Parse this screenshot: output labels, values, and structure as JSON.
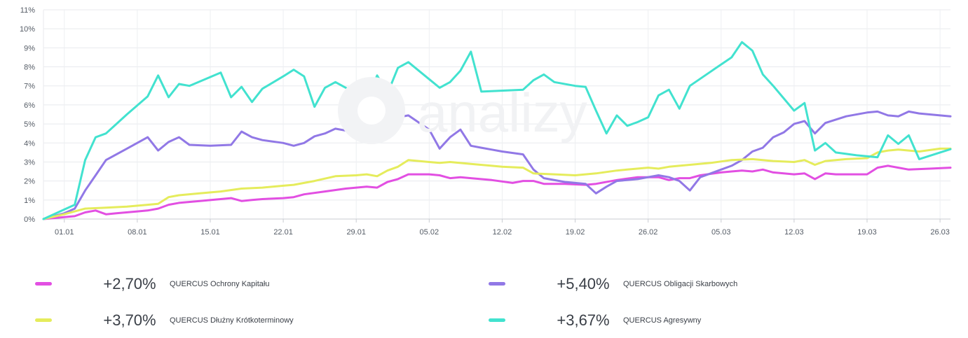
{
  "chart_data": {
    "type": "line",
    "ylim": [
      0,
      11
    ],
    "yticks": [
      "0%",
      "1%",
      "2%",
      "3%",
      "4%",
      "5%",
      "6%",
      "7%",
      "8%",
      "9%",
      "10%",
      "11%"
    ],
    "xlim_days": [
      0,
      87
    ],
    "xticks": [
      {
        "label": "01.01",
        "day": 2
      },
      {
        "label": "08.01",
        "day": 9
      },
      {
        "label": "15.01",
        "day": 16
      },
      {
        "label": "22.01",
        "day": 23
      },
      {
        "label": "29.01",
        "day": 30
      },
      {
        "label": "05.02",
        "day": 37
      },
      {
        "label": "12.02",
        "day": 44
      },
      {
        "label": "19.02",
        "day": 51
      },
      {
        "label": "26.02",
        "day": 58
      },
      {
        "label": "05.03",
        "day": 65
      },
      {
        "label": "12.03",
        "day": 72
      },
      {
        "label": "19.03",
        "day": 79
      },
      {
        "label": "26.03",
        "day": 86
      }
    ],
    "grid": true,
    "series": [
      {
        "name": "QUERCUS Ochrony Kapitału",
        "color": "#e24fe2",
        "points": [
          [
            0,
            0
          ],
          [
            2,
            0.1
          ],
          [
            3,
            0.15
          ],
          [
            4,
            0.35
          ],
          [
            5,
            0.45
          ],
          [
            6,
            0.25
          ],
          [
            7,
            0.3
          ],
          [
            9,
            0.4
          ],
          [
            10,
            0.45
          ],
          [
            11,
            0.55
          ],
          [
            12,
            0.75
          ],
          [
            13,
            0.85
          ],
          [
            15,
            0.95
          ],
          [
            17,
            1.05
          ],
          [
            18,
            1.1
          ],
          [
            19,
            0.95
          ],
          [
            20,
            1.0
          ],
          [
            21,
            1.05
          ],
          [
            23,
            1.1
          ],
          [
            24,
            1.15
          ],
          [
            25,
            1.3
          ],
          [
            27,
            1.45
          ],
          [
            29,
            1.6
          ],
          [
            30,
            1.65
          ],
          [
            31,
            1.7
          ],
          [
            32,
            1.65
          ],
          [
            33,
            1.95
          ],
          [
            34,
            2.1
          ],
          [
            35,
            2.35
          ],
          [
            37,
            2.35
          ],
          [
            38,
            2.3
          ],
          [
            39,
            2.15
          ],
          [
            40,
            2.2
          ],
          [
            41,
            2.15
          ],
          [
            43,
            2.05
          ],
          [
            45,
            1.9
          ],
          [
            46,
            2.0
          ],
          [
            47,
            2.0
          ],
          [
            48,
            1.85
          ],
          [
            50,
            1.85
          ],
          [
            52,
            1.8
          ],
          [
            53,
            1.85
          ],
          [
            55,
            2.05
          ],
          [
            57,
            2.2
          ],
          [
            59,
            2.2
          ],
          [
            60,
            2.05
          ],
          [
            61,
            2.15
          ],
          [
            62,
            2.15
          ],
          [
            63,
            2.3
          ],
          [
            65,
            2.45
          ],
          [
            66,
            2.5
          ],
          [
            67,
            2.55
          ],
          [
            68,
            2.5
          ],
          [
            69,
            2.6
          ],
          [
            70,
            2.45
          ],
          [
            72,
            2.35
          ],
          [
            73,
            2.4
          ],
          [
            74,
            2.1
          ],
          [
            75,
            2.4
          ],
          [
            76,
            2.35
          ],
          [
            79,
            2.35
          ],
          [
            80,
            2.7
          ],
          [
            81,
            2.8
          ],
          [
            82,
            2.7
          ],
          [
            83,
            2.6
          ],
          [
            85,
            2.65
          ],
          [
            87,
            2.7
          ]
        ]
      },
      {
        "name": "QUERCUS Obligacji Skarbowych",
        "color": "#9178e6",
        "points": [
          [
            0,
            0
          ],
          [
            2,
            0.3
          ],
          [
            3,
            0.55
          ],
          [
            4,
            1.5
          ],
          [
            5,
            2.3
          ],
          [
            6,
            3.1
          ],
          [
            8,
            3.7
          ],
          [
            10,
            4.3
          ],
          [
            11,
            3.6
          ],
          [
            12,
            4.05
          ],
          [
            13,
            4.3
          ],
          [
            14,
            3.9
          ],
          [
            16,
            3.85
          ],
          [
            18,
            3.9
          ],
          [
            19,
            4.6
          ],
          [
            20,
            4.3
          ],
          [
            21,
            4.15
          ],
          [
            23,
            4.0
          ],
          [
            24,
            3.85
          ],
          [
            25,
            4.0
          ],
          [
            26,
            4.35
          ],
          [
            27,
            4.5
          ],
          [
            28,
            4.75
          ],
          [
            30,
            4.55
          ],
          [
            31,
            4.4
          ],
          [
            32,
            4.15
          ],
          [
            33,
            4.4
          ],
          [
            34,
            5.35
          ],
          [
            35,
            5.45
          ],
          [
            37,
            4.7
          ],
          [
            38,
            3.7
          ],
          [
            39,
            4.3
          ],
          [
            40,
            4.7
          ],
          [
            41,
            3.85
          ],
          [
            42,
            3.75
          ],
          [
            43,
            3.65
          ],
          [
            44,
            3.55
          ],
          [
            46,
            3.4
          ],
          [
            47,
            2.6
          ],
          [
            48,
            2.15
          ],
          [
            50,
            1.95
          ],
          [
            52,
            1.85
          ],
          [
            53,
            1.35
          ],
          [
            54,
            1.7
          ],
          [
            55,
            2.0
          ],
          [
            57,
            2.1
          ],
          [
            59,
            2.3
          ],
          [
            60,
            2.2
          ],
          [
            61,
            2.0
          ],
          [
            62,
            1.5
          ],
          [
            63,
            2.2
          ],
          [
            64,
            2.4
          ],
          [
            65,
            2.6
          ],
          [
            66,
            2.8
          ],
          [
            67,
            3.1
          ],
          [
            68,
            3.55
          ],
          [
            69,
            3.75
          ],
          [
            70,
            4.3
          ],
          [
            71,
            4.55
          ],
          [
            72,
            5.0
          ],
          [
            73,
            5.15
          ],
          [
            74,
            4.5
          ],
          [
            75,
            5.05
          ],
          [
            77,
            5.4
          ],
          [
            79,
            5.6
          ],
          [
            80,
            5.65
          ],
          [
            81,
            5.45
          ],
          [
            82,
            5.4
          ],
          [
            83,
            5.65
          ],
          [
            84,
            5.55
          ],
          [
            87,
            5.4
          ]
        ]
      },
      {
        "name": "QUERCUS Dłużny Krótkoterminowy",
        "color": "#e5ec5c",
        "points": [
          [
            0,
            0
          ],
          [
            2,
            0.25
          ],
          [
            3,
            0.4
          ],
          [
            4,
            0.55
          ],
          [
            6,
            0.6
          ],
          [
            8,
            0.65
          ],
          [
            10,
            0.75
          ],
          [
            11,
            0.8
          ],
          [
            12,
            1.15
          ],
          [
            13,
            1.25
          ],
          [
            15,
            1.35
          ],
          [
            17,
            1.45
          ],
          [
            19,
            1.6
          ],
          [
            21,
            1.65
          ],
          [
            23,
            1.75
          ],
          [
            24,
            1.8
          ],
          [
            26,
            2.0
          ],
          [
            28,
            2.25
          ],
          [
            30,
            2.3
          ],
          [
            31,
            2.35
          ],
          [
            32,
            2.25
          ],
          [
            33,
            2.55
          ],
          [
            34,
            2.75
          ],
          [
            35,
            3.1
          ],
          [
            36,
            3.05
          ],
          [
            37,
            3.0
          ],
          [
            38,
            2.95
          ],
          [
            39,
            3.0
          ],
          [
            41,
            2.9
          ],
          [
            43,
            2.8
          ],
          [
            44,
            2.75
          ],
          [
            46,
            2.7
          ],
          [
            47,
            2.4
          ],
          [
            49,
            2.35
          ],
          [
            51,
            2.3
          ],
          [
            52,
            2.35
          ],
          [
            53,
            2.4
          ],
          [
            55,
            2.55
          ],
          [
            56,
            2.6
          ],
          [
            58,
            2.7
          ],
          [
            59,
            2.65
          ],
          [
            60,
            2.75
          ],
          [
            62,
            2.85
          ],
          [
            64,
            2.95
          ],
          [
            66,
            3.1
          ],
          [
            68,
            3.15
          ],
          [
            69,
            3.1
          ],
          [
            70,
            3.05
          ],
          [
            72,
            3.0
          ],
          [
            73,
            3.1
          ],
          [
            74,
            2.85
          ],
          [
            75,
            3.05
          ],
          [
            77,
            3.15
          ],
          [
            79,
            3.2
          ],
          [
            80,
            3.5
          ],
          [
            81,
            3.6
          ],
          [
            82,
            3.65
          ],
          [
            84,
            3.55
          ],
          [
            86,
            3.7
          ],
          [
            87,
            3.7
          ]
        ]
      },
      {
        "name": "QUERCUS Agresywny",
        "color": "#42e2cf",
        "points": [
          [
            0,
            0
          ],
          [
            2,
            0.5
          ],
          [
            3,
            0.75
          ],
          [
            4,
            3.1
          ],
          [
            5,
            4.3
          ],
          [
            6,
            4.5
          ],
          [
            7,
            5.0
          ],
          [
            8,
            5.5
          ],
          [
            10,
            6.45
          ],
          [
            11,
            7.55
          ],
          [
            12,
            6.4
          ],
          [
            13,
            7.1
          ],
          [
            14,
            7.0
          ],
          [
            17,
            7.7
          ],
          [
            18,
            6.4
          ],
          [
            19,
            6.95
          ],
          [
            20,
            6.15
          ],
          [
            21,
            6.85
          ],
          [
            23,
            7.5
          ],
          [
            24,
            7.85
          ],
          [
            25,
            7.5
          ],
          [
            26,
            5.9
          ],
          [
            27,
            6.9
          ],
          [
            28,
            7.2
          ],
          [
            30,
            6.6
          ],
          [
            31,
            6.2
          ],
          [
            32,
            7.55
          ],
          [
            33,
            6.6
          ],
          [
            34,
            7.95
          ],
          [
            35,
            8.25
          ],
          [
            37,
            7.35
          ],
          [
            38,
            6.9
          ],
          [
            39,
            7.2
          ],
          [
            40,
            7.8
          ],
          [
            41,
            8.8
          ],
          [
            42,
            6.7
          ],
          [
            46,
            6.8
          ],
          [
            47,
            7.3
          ],
          [
            48,
            7.6
          ],
          [
            49,
            7.2
          ],
          [
            51,
            7.0
          ],
          [
            52,
            6.95
          ],
          [
            53,
            5.7
          ],
          [
            54,
            4.5
          ],
          [
            55,
            5.45
          ],
          [
            56,
            4.9
          ],
          [
            57,
            5.1
          ],
          [
            58,
            5.35
          ],
          [
            59,
            6.5
          ],
          [
            60,
            6.8
          ],
          [
            61,
            5.8
          ],
          [
            62,
            7.0
          ],
          [
            64,
            7.75
          ],
          [
            66,
            8.5
          ],
          [
            67,
            9.3
          ],
          [
            68,
            8.85
          ],
          [
            69,
            7.6
          ],
          [
            70,
            7.0
          ],
          [
            72,
            5.7
          ],
          [
            73,
            6.1
          ],
          [
            74,
            3.6
          ],
          [
            75,
            4.0
          ],
          [
            76,
            3.5
          ],
          [
            78,
            3.35
          ],
          [
            80,
            3.25
          ],
          [
            81,
            4.4
          ],
          [
            82,
            3.95
          ],
          [
            83,
            4.4
          ],
          [
            84,
            3.15
          ],
          [
            86,
            3.5
          ],
          [
            87,
            3.67
          ]
        ]
      }
    ]
  },
  "legend": [
    {
      "value": "+2,70%",
      "name": "QUERCUS Ochrony Kapitału",
      "color": "#e24fe2"
    },
    {
      "value": "+5,40%",
      "name": "QUERCUS Obligacji Skarbowych",
      "color": "#9178e6"
    },
    {
      "value": "+3,70%",
      "name": "QUERCUS Dłużny Krótkoterminowy",
      "color": "#e5ec5c"
    },
    {
      "value": "+3,67%",
      "name": "QUERCUS Agresywny",
      "color": "#42e2cf"
    }
  ],
  "watermark": {
    "text": "analizy"
  }
}
